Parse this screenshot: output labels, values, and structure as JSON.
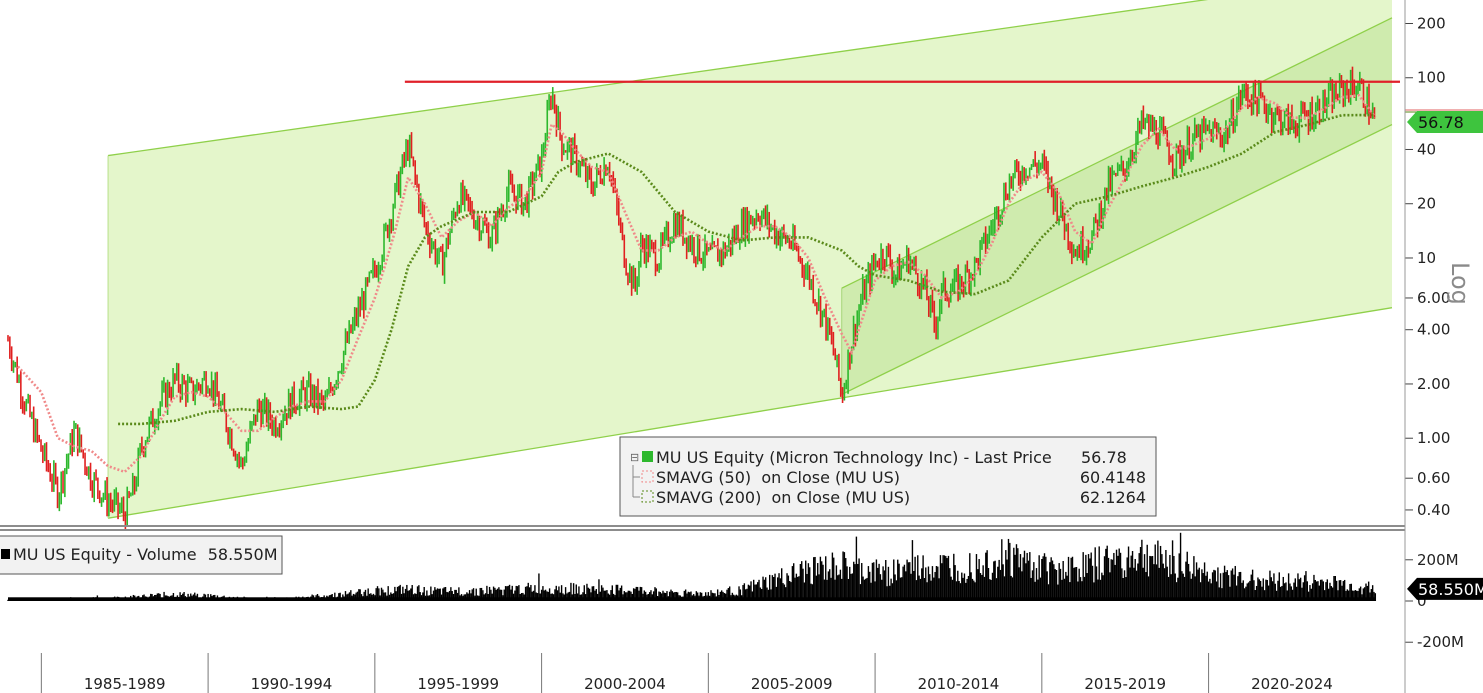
{
  "chart_data": [
    {
      "type": "line",
      "title": "",
      "scale": "log",
      "scale_label": "Log",
      "ylim": [
        0.33,
        270
      ],
      "y_ticks": [
        {
          "value": 200,
          "label": "200"
        },
        {
          "value": 100,
          "label": "100"
        },
        {
          "value": 40,
          "label": "40"
        },
        {
          "value": 20,
          "label": "20"
        },
        {
          "value": 10,
          "label": "10"
        },
        {
          "value": 6,
          "label": "6.00"
        },
        {
          "value": 4,
          "label": "4.00"
        },
        {
          "value": 2,
          "label": "2.00"
        },
        {
          "value": 1,
          "label": "1.00"
        },
        {
          "value": 0.6,
          "label": "0.60"
        },
        {
          "value": 0.4,
          "label": "0.40"
        }
      ],
      "x_categories": [
        "1985-1989",
        "1990-1994",
        "1995-1999",
        "2000-2004",
        "2005-2009",
        "2010-2014",
        "2015-2019",
        "2020-2024"
      ],
      "xlim": [
        1984.0,
        2025.5
      ],
      "grid": false,
      "legend": {
        "placement": "bottom-center",
        "entries": [
          {
            "label": "MU US Equity (Micron Technology Inc) - Last Price",
            "value": "56.78",
            "color": "#2db82d",
            "style": "solid"
          },
          {
            "label": "SMAVG (50)  on Close (MU US)",
            "value": "60.4148",
            "color": "#f08a8a",
            "style": "dotted"
          },
          {
            "label": "SMAVG (200)  on Close (MU US)",
            "value": "62.1264",
            "color": "#5a8a1a",
            "style": "dotted"
          }
        ]
      },
      "last_price_tag": "56.78",
      "reference_line": {
        "value": 95,
        "color": "#e0202a",
        "x_from": 1995.9,
        "x_to": 2025.5
      },
      "series": [
        {
          "name": "MU US Equity (Micron Technology Inc) - Last Price",
          "color_up": "#2db82d",
          "color_down": "#e02020",
          "x": [
            1984.0,
            1984.5,
            1985.0,
            1985.5,
            1986.0,
            1986.5,
            1987.0,
            1987.5,
            1987.8,
            1988.0,
            1988.5,
            1989.0,
            1989.5,
            1990.0,
            1990.5,
            1991.0,
            1991.5,
            1992.0,
            1992.5,
            1993.0,
            1993.5,
            1994.0,
            1994.5,
            1995.0,
            1995.3,
            1995.6,
            1996.0,
            1996.5,
            1997.0,
            1997.5,
            1998.0,
            1998.5,
            1999.0,
            1999.5,
            2000.0,
            2000.3,
            2000.6,
            2001.0,
            2001.5,
            2002.0,
            2002.5,
            2002.8,
            2003.0,
            2003.5,
            2004.0,
            2004.5,
            2005.0,
            2005.5,
            2006.0,
            2006.5,
            2007.0,
            2007.5,
            2008.0,
            2008.5,
            2008.8,
            2009.0,
            2009.3,
            2009.6,
            2010.0,
            2010.3,
            2010.6,
            2011.0,
            2011.5,
            2011.8,
            2012.0,
            2012.5,
            2013.0,
            2013.5,
            2014.0,
            2014.5,
            2015.0,
            2015.5,
            2016.0,
            2016.5,
            2017.0,
            2017.5,
            2018.0,
            2018.5,
            2019.0,
            2019.5,
            2020.0,
            2020.5,
            2021.0,
            2021.5,
            2022.0,
            2022.5,
            2023.0,
            2023.5,
            2024.0,
            2024.5,
            2025.0
          ],
          "y": [
            3.5,
            1.6,
            0.85,
            0.5,
            1.1,
            0.6,
            0.45,
            0.38,
            0.55,
            0.9,
            1.5,
            2.1,
            1.8,
            2.2,
            1.3,
            0.7,
            1.5,
            1.2,
            1.6,
            1.8,
            1.5,
            2.8,
            5.0,
            8.5,
            13.0,
            22.0,
            42.0,
            15.0,
            9.0,
            22.0,
            17.0,
            13.0,
            24.0,
            20.0,
            35.0,
            85.0,
            44.0,
            36.0,
            25.0,
            35.0,
            10.0,
            6.8,
            12.0,
            10.0,
            16.0,
            12.0,
            10.0,
            11.0,
            15.0,
            18.0,
            14.0,
            12.0,
            8.0,
            4.5,
            2.8,
            1.7,
            3.5,
            6.0,
            9.5,
            11.0,
            8.0,
            10.0,
            6.5,
            4.2,
            6.5,
            7.0,
            9.0,
            15.0,
            26.0,
            32.0,
            33.0,
            19.0,
            11.0,
            13.0,
            25.0,
            32.0,
            55.0,
            50.0,
            35.0,
            45.0,
            50.0,
            48.0,
            82.0,
            75.0,
            62.0,
            55.0,
            62.0,
            72.0,
            85.0,
            92.0,
            56.78
          ]
        },
        {
          "name": "SMAVG (50)  on Close (MU US)",
          "color": "#f08a8a",
          "x": [
            1984.3,
            1985.0,
            1985.5,
            1986.0,
            1986.5,
            1987.0,
            1987.5,
            1988.0,
            1988.5,
            1989.0,
            1989.5,
            1990.0,
            1990.5,
            1991.0,
            1991.5,
            1992.0,
            1992.5,
            1993.0,
            1993.5,
            1994.0,
            1994.5,
            1995.0,
            1995.3,
            1995.6,
            1996.0,
            1996.5,
            1997.0,
            1997.5,
            1998.0,
            1998.5,
            1999.0,
            1999.5,
            2000.0,
            2000.3,
            2000.6,
            2001.0,
            2001.5,
            2002.0,
            2002.5,
            2003.0,
            2003.5,
            2004.0,
            2004.5,
            2005.0,
            2005.5,
            2006.0,
            2006.5,
            2007.0,
            2007.5,
            2008.0,
            2008.5,
            2009.0,
            2009.3,
            2009.6,
            2010.0,
            2010.5,
            2011.0,
            2011.5,
            2012.0,
            2012.5,
            2013.0,
            2013.5,
            2014.0,
            2014.5,
            2015.0,
            2015.5,
            2016.0,
            2016.5,
            2017.0,
            2017.5,
            2018.0,
            2018.5,
            2019.0,
            2019.5,
            2020.0,
            2020.5,
            2021.0,
            2021.5,
            2022.0,
            2022.5,
            2023.0,
            2023.5,
            2024.0,
            2024.5,
            2025.0
          ],
          "y": [
            2.5,
            1.8,
            1.0,
            0.9,
            0.85,
            0.7,
            0.65,
            0.8,
            1.2,
            1.7,
            1.8,
            1.7,
            1.4,
            1.1,
            1.1,
            1.3,
            1.5,
            1.6,
            1.6,
            2.1,
            3.6,
            6.0,
            9.0,
            14.0,
            28.0,
            20.0,
            13.0,
            16.0,
            18.0,
            15.0,
            19.0,
            22.0,
            30.0,
            55.0,
            50.0,
            40.0,
            32.0,
            30.0,
            18.0,
            11.0,
            11.0,
            13.0,
            14.0,
            12.0,
            11.0,
            13.0,
            15.0,
            15.0,
            13.0,
            10.0,
            6.0,
            3.8,
            3.0,
            4.5,
            7.5,
            9.0,
            9.5,
            8.0,
            6.0,
            6.5,
            8.0,
            12.0,
            20.0,
            27.0,
            30.0,
            23.0,
            14.0,
            12.0,
            19.0,
            28.0,
            42.0,
            52.0,
            40.0,
            42.0,
            46.0,
            52.0,
            68.0,
            78.0,
            72.0,
            60.0,
            60.0,
            68.0,
            78.0,
            80.0,
            60.4148
          ]
        },
        {
          "name": "SMAVG (200)  on Close (MU US)",
          "color": "#5a8a1a",
          "x": [
            1987.3,
            1988.0,
            1989.0,
            1990.0,
            1991.0,
            1992.0,
            1993.0,
            1994.0,
            1994.5,
            1995.0,
            1995.5,
            1996.0,
            1996.5,
            1997.0,
            1998.0,
            1999.0,
            2000.0,
            2000.5,
            2001.0,
            2002.0,
            2003.0,
            2004.0,
            2005.0,
            2006.0,
            2007.0,
            2008.0,
            2009.0,
            2009.5,
            2010.0,
            2011.0,
            2012.0,
            2013.0,
            2014.0,
            2015.0,
            2016.0,
            2017.0,
            2018.0,
            2019.0,
            2020.0,
            2021.0,
            2022.0,
            2023.0,
            2024.0,
            2025.0
          ],
          "y": [
            1.2,
            1.2,
            1.25,
            1.4,
            1.45,
            1.4,
            1.5,
            1.45,
            1.5,
            2.1,
            4.0,
            9.0,
            13.0,
            15.0,
            18.0,
            18.0,
            22.0,
            30.0,
            34.0,
            38.0,
            30.0,
            18.0,
            14.0,
            12.5,
            13.0,
            13.0,
            11.0,
            9.0,
            8.0,
            7.5,
            6.5,
            6.3,
            7.5,
            13.0,
            20.0,
            22.0,
            25.0,
            28.0,
            32.0,
            38.0,
            50.0,
            55.0,
            62.0,
            62.1264
          ]
        }
      ],
      "channels": [
        {
          "name": "long-term-upper",
          "x": [
            1987.0,
            2025.5
          ],
          "y": [
            37,
            380
          ]
        },
        {
          "name": "long-term-lower",
          "x": [
            1987.0,
            2025.5
          ],
          "y": [
            0.36,
            5.3
          ]
        },
        {
          "name": "recent-upper",
          "x": [
            2009.0,
            2025.5
          ],
          "y": [
            6.8,
            215
          ]
        },
        {
          "name": "recent-lower",
          "x": [
            2009.0,
            2025.5
          ],
          "y": [
            1.75,
            55
          ]
        }
      ]
    },
    {
      "type": "bar",
      "title": "",
      "legend": {
        "label": "MU US Equity - Volume",
        "value": "58.550M"
      },
      "ylim": [
        -260,
        330
      ],
      "y_ticks": [
        {
          "value": 200,
          "label": "200M"
        },
        {
          "value": 0,
          "label": "0"
        },
        {
          "value": -200,
          "label": "-200M"
        }
      ],
      "last_value_tag": "58.550M",
      "unit": "M",
      "series": [
        {
          "name": "MU US Equity - Volume",
          "color": "#000000",
          "x": [
            1984,
            1985,
            1986,
            1987,
            1988,
            1989,
            1990,
            1991,
            1992,
            1993,
            1994,
            1995,
            1996,
            1997,
            1998,
            1999,
            2000,
            2001,
            2002,
            2003,
            2004,
            2005,
            2006,
            2007,
            2008,
            2009,
            2010,
            2011,
            2012,
            2013,
            2014,
            2015,
            2016,
            2017,
            2018,
            2019,
            2020,
            2021,
            2022,
            2023,
            2024,
            2025
          ],
          "y": [
            5,
            8,
            12,
            15,
            25,
            35,
            28,
            15,
            10,
            22,
            35,
            55,
            60,
            50,
            55,
            60,
            70,
            65,
            60,
            55,
            45,
            40,
            60,
            110,
            160,
            180,
            150,
            170,
            180,
            200,
            240,
            180,
            170,
            210,
            240,
            200,
            150,
            120,
            110,
            100,
            90,
            58.55
          ]
        }
      ]
    }
  ]
}
